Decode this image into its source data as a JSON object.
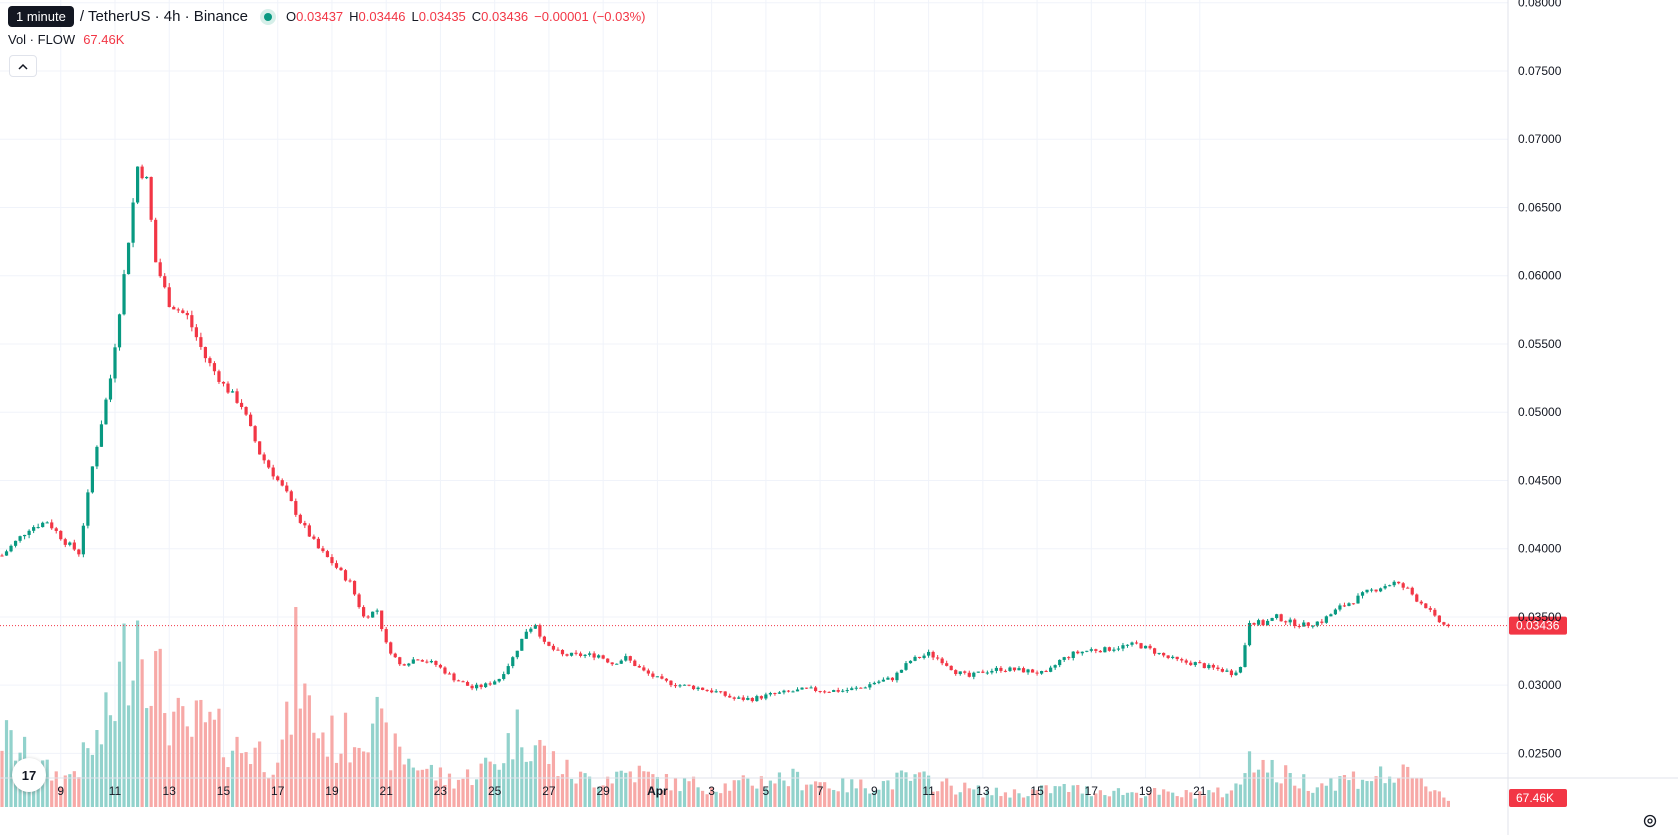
{
  "legend": {
    "tooltip": "1 minute",
    "symbol": "/ TetherUS · 4h · Binance",
    "o_label": "O",
    "o_value": "0.03437",
    "h_label": "H",
    "h_value": "0.03446",
    "l_label": "L",
    "l_value": "0.03435",
    "c_label": "C",
    "c_value": "0.03436",
    "change": "−0.00001 (−0.03%)"
  },
  "volume_legend": {
    "label": "Vol · FLOW",
    "value": "67.46K"
  },
  "icons": {
    "collapse": "chevron-up-icon",
    "logo": "tradingview-logo",
    "settings": "gear-icon"
  },
  "logo_text": "17",
  "colors": {
    "up": "#089981",
    "down": "#f23645",
    "up_volume": "#92d2cc",
    "down_volume": "#f7a9a7",
    "grid": "#f0f3fa",
    "price_line": "#f23645"
  },
  "chart_data": {
    "type": "candlestick",
    "interval": "4h",
    "y_axis_ticks": [
      "0.02500",
      "0.03000",
      "0.03500",
      "0.04000",
      "0.04500",
      "0.05000",
      "0.05500",
      "0.06000",
      "0.06500",
      "0.07000",
      "0.07500",
      "0.08000"
    ],
    "x_axis_ticks": [
      "9",
      "11",
      "13",
      "15",
      "17",
      "19",
      "21",
      "23",
      "25",
      "27",
      "29",
      "Apr",
      "3",
      "5",
      "7",
      "9",
      "11",
      "13",
      "15",
      "17",
      "19",
      "21"
    ],
    "ylim": [
      0.0232,
      0.0802
    ],
    "grid": true,
    "last_price": "0.03436",
    "last_volume": "67.46K",
    "close_path": [
      [
        0,
        0.0395
      ],
      [
        6,
        0.0415
      ],
      [
        10,
        0.042
      ],
      [
        14,
        0.0405
      ],
      [
        17,
        0.0397
      ],
      [
        20,
        0.046
      ],
      [
        24,
        0.0525
      ],
      [
        27,
        0.06
      ],
      [
        30,
        0.068
      ],
      [
        32,
        0.067
      ],
      [
        34,
        0.061
      ],
      [
        37,
        0.058
      ],
      [
        41,
        0.057
      ],
      [
        45,
        0.054
      ],
      [
        49,
        0.052
      ],
      [
        53,
        0.0505
      ],
      [
        57,
        0.047
      ],
      [
        61,
        0.045
      ],
      [
        63,
        0.044
      ],
      [
        66,
        0.042
      ],
      [
        70,
        0.04
      ],
      [
        73,
        0.039
      ],
      [
        77,
        0.0375
      ],
      [
        80,
        0.035
      ],
      [
        83,
        0.0355
      ],
      [
        85,
        0.033
      ],
      [
        88,
        0.0315
      ],
      [
        92,
        0.032
      ],
      [
        96,
        0.0315
      ],
      [
        100,
        0.0305
      ],
      [
        104,
        0.0298
      ],
      [
        107,
        0.03
      ],
      [
        110,
        0.0305
      ],
      [
        113,
        0.032
      ],
      [
        116,
        0.034
      ],
      [
        118,
        0.0345
      ],
      [
        120,
        0.033
      ],
      [
        124,
        0.0322
      ],
      [
        128,
        0.0322
      ],
      [
        132,
        0.0322
      ],
      [
        135,
        0.0316
      ],
      [
        138,
        0.032
      ],
      [
        142,
        0.031
      ],
      [
        146,
        0.0303
      ],
      [
        150,
        0.03
      ],
      [
        154,
        0.0298
      ],
      [
        158,
        0.0295
      ],
      [
        162,
        0.029
      ],
      [
        166,
        0.029
      ],
      [
        170,
        0.0293
      ],
      [
        174,
        0.0295
      ],
      [
        178,
        0.0297
      ],
      [
        182,
        0.0296
      ],
      [
        186,
        0.0296
      ],
      [
        190,
        0.0298
      ],
      [
        193,
        0.0302
      ],
      [
        197,
        0.0305
      ],
      [
        201,
        0.0318
      ],
      [
        205,
        0.0323
      ],
      [
        208,
        0.0318
      ],
      [
        211,
        0.031
      ],
      [
        214,
        0.0306
      ],
      [
        217,
        0.031
      ],
      [
        221,
        0.0312
      ],
      [
        225,
        0.0311
      ],
      [
        228,
        0.031
      ],
      [
        231,
        0.0308
      ],
      [
        234,
        0.0318
      ],
      [
        237,
        0.0323
      ],
      [
        241,
        0.0326
      ],
      [
        244,
        0.0326
      ],
      [
        247,
        0.0328
      ],
      [
        251,
        0.033
      ],
      [
        254,
        0.0326
      ],
      [
        258,
        0.032
      ],
      [
        261,
        0.0317
      ],
      [
        264,
        0.0316
      ],
      [
        267,
        0.0313
      ],
      [
        270,
        0.0311
      ],
      [
        272,
        0.0309
      ],
      [
        274,
        0.0313
      ],
      [
        276,
        0.0347
      ],
      [
        279,
        0.0345
      ],
      [
        282,
        0.035
      ],
      [
        285,
        0.0346
      ],
      [
        288,
        0.0344
      ],
      [
        292,
        0.0347
      ],
      [
        296,
        0.0357
      ],
      [
        299,
        0.0362
      ],
      [
        302,
        0.0368
      ],
      [
        305,
        0.0372
      ],
      [
        308,
        0.0375
      ],
      [
        311,
        0.037
      ],
      [
        313,
        0.0363
      ],
      [
        315,
        0.0358
      ],
      [
        317,
        0.0349
      ],
      [
        319,
        0.0344
      ],
      [
        320,
        0.0344
      ]
    ],
    "volume_path": [
      [
        0,
        3
      ],
      [
        6,
        2
      ],
      [
        10,
        1.5
      ],
      [
        14,
        1.2
      ],
      [
        18,
        2
      ],
      [
        22,
        3
      ],
      [
        25,
        4.5
      ],
      [
        28,
        7
      ],
      [
        30,
        8
      ],
      [
        32,
        7
      ],
      [
        34,
        5.5
      ],
      [
        37,
        4
      ],
      [
        41,
        3
      ],
      [
        44,
        3.6
      ],
      [
        48,
        3
      ],
      [
        52,
        2.5
      ],
      [
        56,
        2.5
      ],
      [
        59,
        2
      ],
      [
        62,
        2.6
      ],
      [
        64,
        4
      ],
      [
        65,
        7
      ],
      [
        67,
        4.5
      ],
      [
        70,
        3.2
      ],
      [
        74,
        2.8
      ],
      [
        78,
        3
      ],
      [
        80,
        3.5
      ],
      [
        82,
        4.2
      ],
      [
        84,
        3
      ],
      [
        86,
        2.4
      ],
      [
        90,
        2
      ],
      [
        94,
        1.6
      ],
      [
        98,
        1.2
      ],
      [
        102,
        1.2
      ],
      [
        106,
        1.6
      ],
      [
        110,
        2
      ],
      [
        113,
        3
      ],
      [
        115,
        3.4
      ],
      [
        117,
        2.8
      ],
      [
        120,
        2.3
      ],
      [
        124,
        1.6
      ],
      [
        128,
        1.2
      ],
      [
        132,
        1.2
      ],
      [
        136,
        1.4
      ],
      [
        140,
        1.5
      ],
      [
        144,
        1.2
      ],
      [
        148,
        1.0
      ],
      [
        152,
        1.0
      ],
      [
        156,
        0.9
      ],
      [
        160,
        0.9
      ],
      [
        165,
        1.0
      ],
      [
        170,
        1.2
      ],
      [
        175,
        1.2
      ],
      [
        180,
        1.1
      ],
      [
        185,
        0.9
      ],
      [
        190,
        0.9
      ],
      [
        195,
        1.0
      ],
      [
        200,
        1.2
      ],
      [
        205,
        1.1
      ],
      [
        210,
        0.9
      ],
      [
        215,
        0.7
      ],
      [
        220,
        0.6
      ],
      [
        225,
        0.6
      ],
      [
        230,
        0.7
      ],
      [
        235,
        0.8
      ],
      [
        240,
        0.7
      ],
      [
        245,
        0.7
      ],
      [
        250,
        0.6
      ],
      [
        255,
        0.6
      ],
      [
        260,
        0.5
      ],
      [
        265,
        0.6
      ],
      [
        270,
        0.6
      ],
      [
        274,
        0.9
      ],
      [
        276,
        2.6
      ],
      [
        279,
        1.8
      ],
      [
        282,
        1.4
      ],
      [
        286,
        1.2
      ],
      [
        290,
        1.0
      ],
      [
        294,
        1.1
      ],
      [
        298,
        1.2
      ],
      [
        302,
        1.3
      ],
      [
        306,
        1.3
      ],
      [
        310,
        1.3
      ],
      [
        314,
        1.0
      ],
      [
        317,
        0.8
      ],
      [
        319,
        0.5
      ],
      [
        320,
        0.3
      ]
    ],
    "candle_count": 321
  }
}
